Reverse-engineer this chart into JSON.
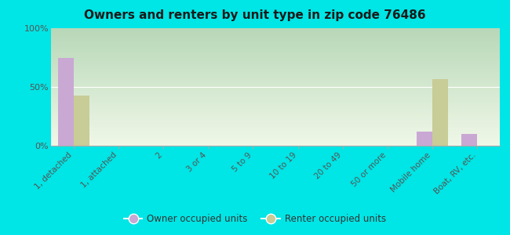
{
  "title": "Owners and renters by unit type in zip code 76486",
  "categories": [
    "1, detached",
    "1, attached",
    "2",
    "3 or 4",
    "5 to 9",
    "10 to 19",
    "20 to 49",
    "50 or more",
    "Mobile home",
    "Boat, RV, etc."
  ],
  "owner_values": [
    75,
    0,
    0,
    0,
    0,
    0,
    0,
    0,
    12,
    10
  ],
  "renter_values": [
    43,
    0,
    0,
    0,
    0,
    0,
    0,
    0,
    57,
    0
  ],
  "owner_color": "#c9a8d4",
  "renter_color": "#c8cc96",
  "background_color": "#00e5e5",
  "owner_label": "Owner occupied units",
  "renter_label": "Renter occupied units",
  "ylim": [
    0,
    100
  ],
  "yticks": [
    0,
    50,
    100
  ],
  "ytick_labels": [
    "0%",
    "50%",
    "100%"
  ],
  "gradient_top": "#b8d8b8",
  "gradient_bottom": "#f0f8e8"
}
